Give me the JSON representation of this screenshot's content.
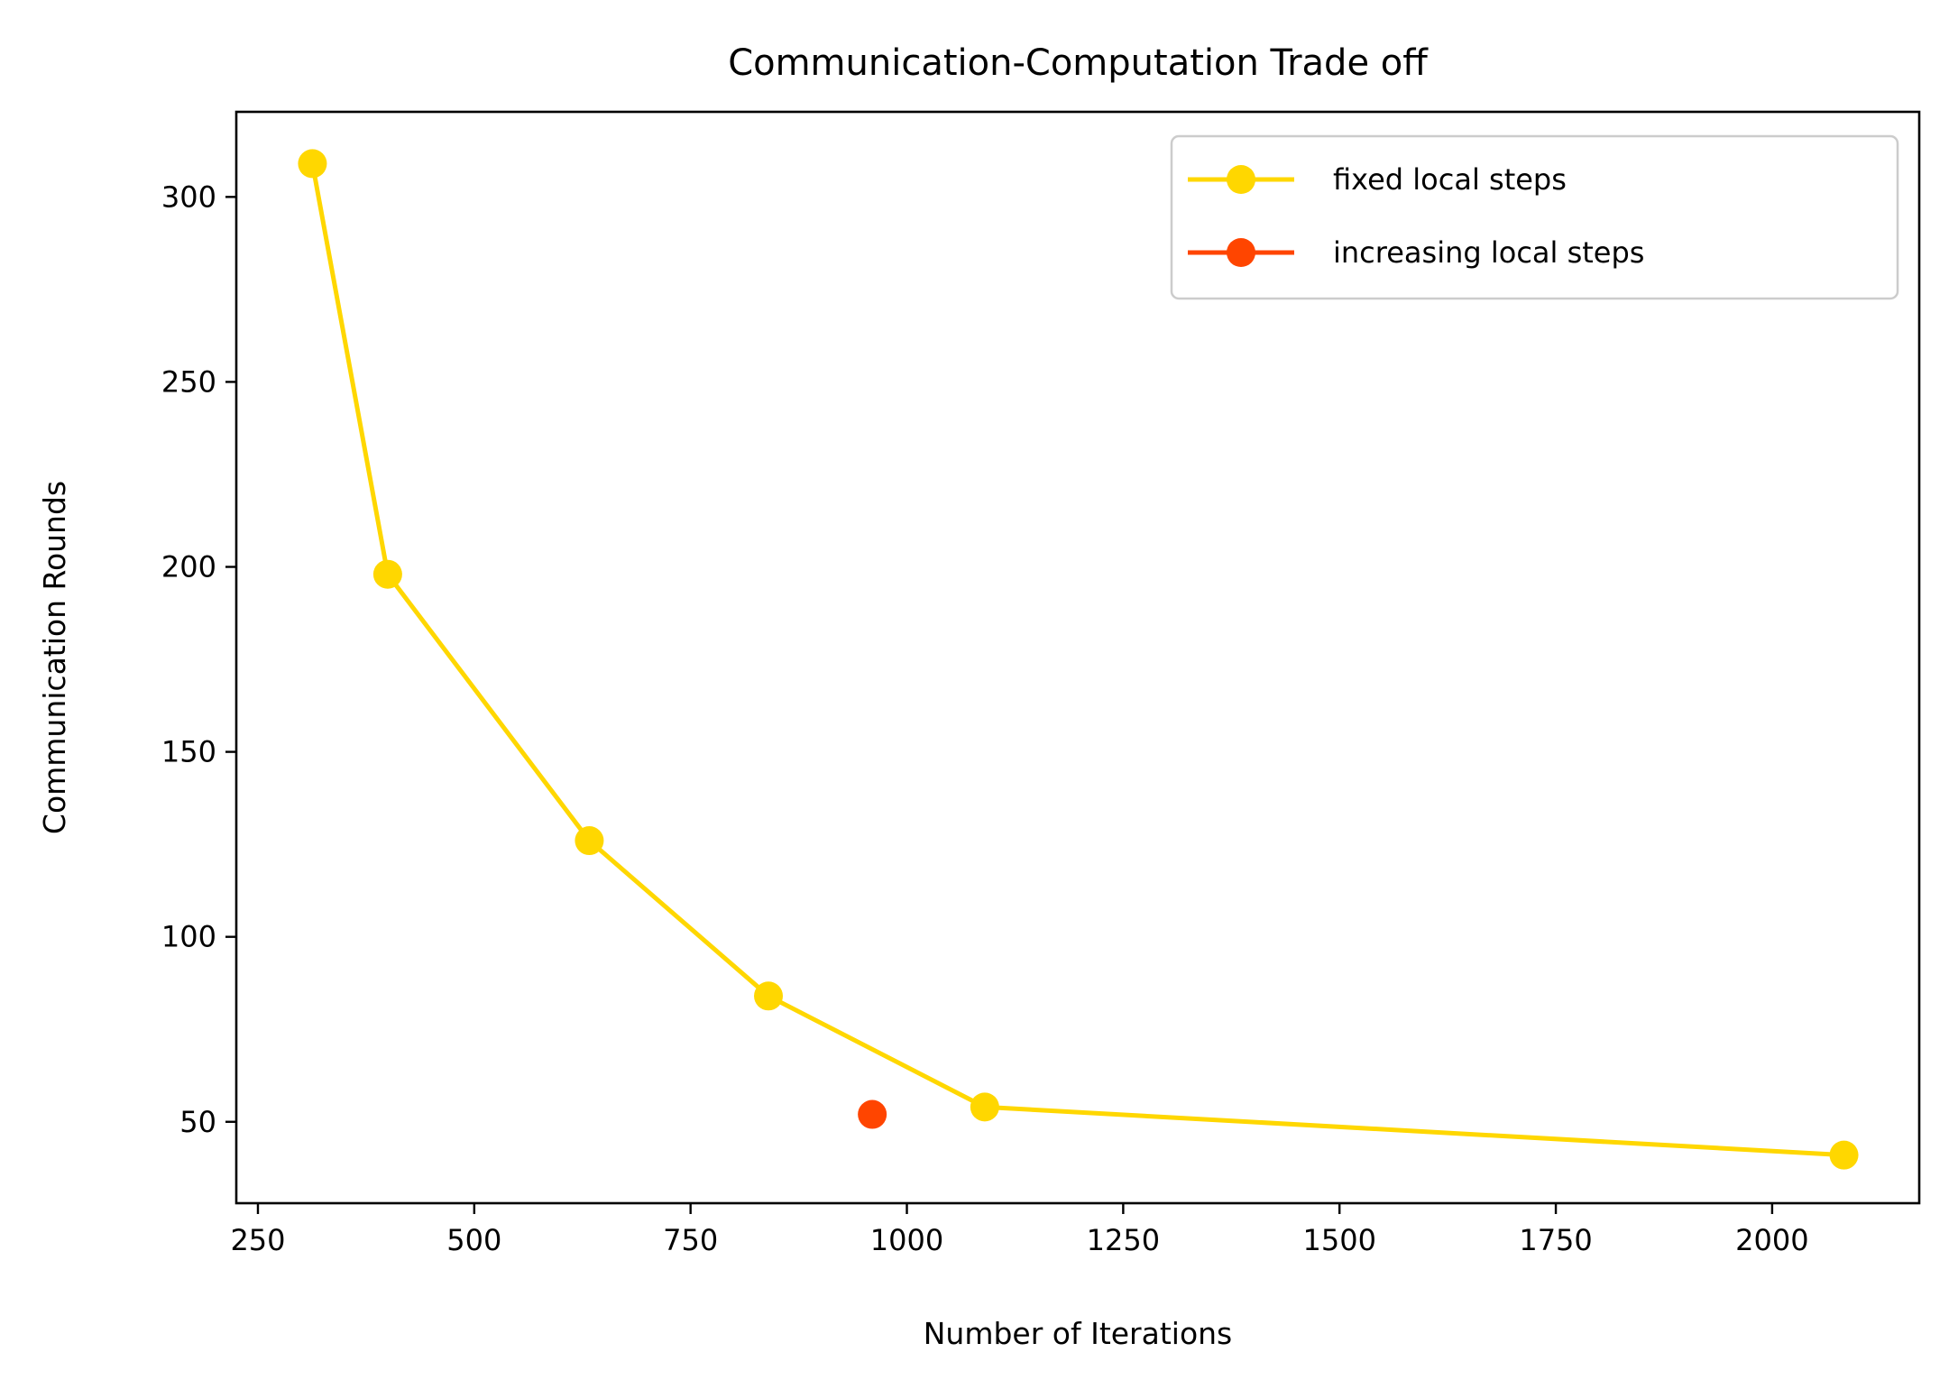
{
  "chart_data": {
    "type": "line",
    "title": "Communication-Computation Trade off",
    "xlabel": "Number of Iterations",
    "ylabel": "Communication Rounds",
    "xlim": [
      225,
      2170
    ],
    "ylim": [
      28,
      323
    ],
    "xticks": [
      250,
      500,
      750,
      1000,
      1250,
      1500,
      1750,
      2000
    ],
    "yticks": [
      50,
      100,
      150,
      200,
      250,
      300
    ],
    "grid": false,
    "legend": "top-right",
    "series": [
      {
        "name": "fixed local steps",
        "color": "#FFD700",
        "x": [
          313,
          400,
          633,
          840,
          1090,
          2083
        ],
        "y": [
          309,
          198,
          126,
          84,
          54,
          41
        ]
      },
      {
        "name": "increasing local steps",
        "color": "#FF4500",
        "x": [
          960
        ],
        "y": [
          52
        ]
      }
    ]
  }
}
